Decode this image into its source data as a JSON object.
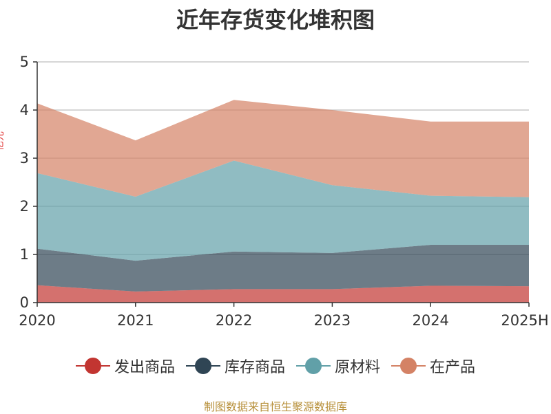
{
  "chart_data": {
    "type": "area",
    "stacked": true,
    "title": "近年存货变化堆积图",
    "xlabel": "",
    "ylabel": "亿元",
    "categories": [
      "2020",
      "2021",
      "2022",
      "2023",
      "2024",
      "2025H"
    ],
    "ylim": [
      0,
      5
    ],
    "yticks": [
      0,
      1,
      2,
      3,
      4,
      5
    ],
    "grid": true,
    "legend_position": "bottom",
    "series": [
      {
        "name": "发出商品",
        "color": "#c23531",
        "values": [
          0.36,
          0.23,
          0.28,
          0.28,
          0.35,
          0.34
        ]
      },
      {
        "name": "库存商品",
        "color": "#2f4554",
        "values": [
          0.76,
          0.64,
          0.78,
          0.75,
          0.85,
          0.86
        ]
      },
      {
        "name": "原材料",
        "color": "#61a0a8",
        "values": [
          1.57,
          1.33,
          1.89,
          1.41,
          1.02,
          0.99
        ]
      },
      {
        "name": "在产品",
        "color": "#d48265",
        "values": [
          1.45,
          1.17,
          1.26,
          1.56,
          1.54,
          1.57
        ]
      }
    ]
  },
  "source_text": "制图数据来自恒生聚源数据库"
}
